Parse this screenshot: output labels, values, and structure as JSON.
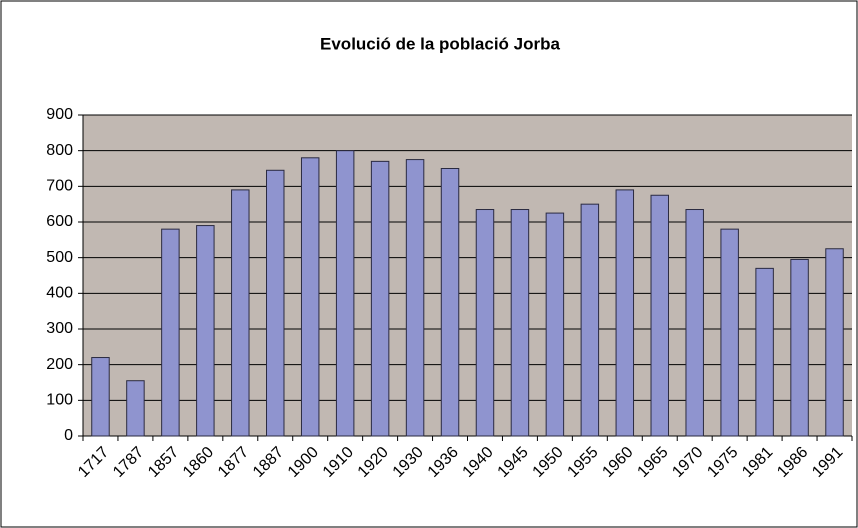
{
  "chart_data": {
    "type": "bar",
    "title": "Evolució de la població Jorba",
    "categories": [
      "1717",
      "1787",
      "1857",
      "1860",
      "1877",
      "1887",
      "1900",
      "1910",
      "1920",
      "1930",
      "1936",
      "1940",
      "1945",
      "1950",
      "1955",
      "1960",
      "1965",
      "1970",
      "1975",
      "1981",
      "1986",
      "1991"
    ],
    "values": [
      220,
      155,
      580,
      590,
      690,
      745,
      780,
      800,
      770,
      775,
      750,
      635,
      635,
      625,
      650,
      690,
      675,
      635,
      580,
      470,
      495,
      525
    ],
    "color": "#8f94cf",
    "ylim": [
      0,
      900
    ],
    "yticks": [
      0,
      100,
      200,
      300,
      400,
      500,
      600,
      700,
      800,
      900
    ],
    "grid": true
  }
}
